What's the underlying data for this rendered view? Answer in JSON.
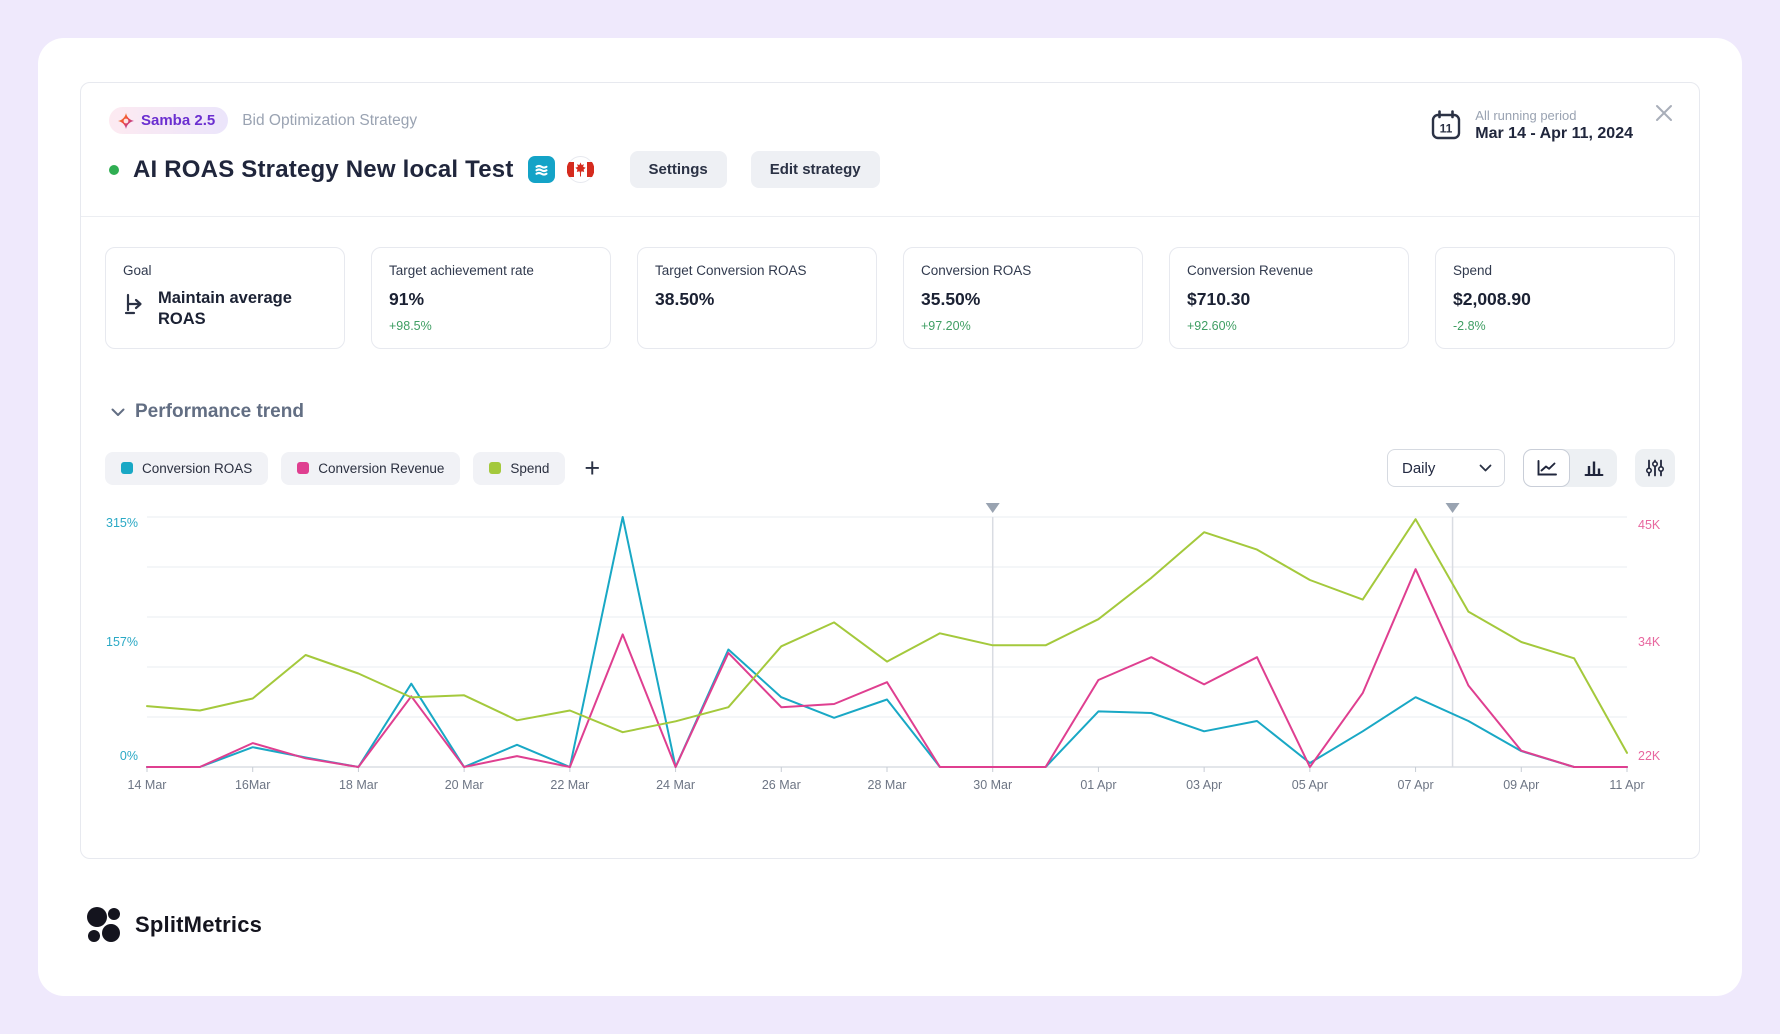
{
  "header": {
    "badge": "Samba 2.5",
    "subtitle": "Bid Optimization Strategy",
    "title": "AI ROAS Strategy New local Test",
    "settings_label": "Settings",
    "edit_label": "Edit strategy",
    "period_label": "All running period",
    "period_value": "Mar 14 - Apr 11, 2024",
    "calendar_day": "11"
  },
  "metrics": [
    {
      "label": "Goal",
      "value": "Maintain average ROAS"
    },
    {
      "label": "Target achievement rate",
      "value": "91%",
      "delta": "+98.5%"
    },
    {
      "label": "Target Conversion ROAS",
      "value": "38.50%",
      "delta": ""
    },
    {
      "label": "Conversion ROAS",
      "value": "35.50%",
      "delta": "+97.20%"
    },
    {
      "label": "Conversion Revenue",
      "value": "$710.30",
      "delta": "+92.60%"
    },
    {
      "label": "Spend",
      "value": "$2,008.90",
      "delta": "-2.8%"
    }
  ],
  "trend": {
    "title": "Performance trend",
    "interval": "Daily",
    "add_label": "+",
    "legend": [
      {
        "label": "Conversion ROAS",
        "color": "#19a8c5"
      },
      {
        "label": "Conversion Revenue",
        "color": "#df3f90"
      },
      {
        "label": "Spend",
        "color": "#a4c93c"
      }
    ]
  },
  "chart_data": {
    "type": "line",
    "x": [
      "14 Mar",
      "15 Mar",
      "16 Mar",
      "17 Mar",
      "18 Mar",
      "19 Mar",
      "20 Mar",
      "21 Mar",
      "22 Mar",
      "23 Mar",
      "24 Mar",
      "25 Mar",
      "26 Mar",
      "27 Mar",
      "28 Mar",
      "29 Mar",
      "30 Mar",
      "31 Mar",
      "01 Apr",
      "02 Apr",
      "03 Apr",
      "04 Apr",
      "05 Apr",
      "06 Apr",
      "07 Apr",
      "08 Apr",
      "09 Apr",
      "10 Apr",
      "11 Apr"
    ],
    "tick_labels": [
      "14 Mar",
      "16Mar",
      "18 Mar",
      "20 Mar",
      "22 Mar",
      "24 Mar",
      "26 Mar",
      "28 Mar",
      "30 Mar",
      "01 Apr",
      "03 Apr",
      "05 Apr",
      "07 Apr",
      "09 Apr",
      "11 Apr"
    ],
    "tick_days": [
      0,
      2,
      4,
      6,
      8,
      10,
      12,
      14,
      16,
      18,
      20,
      22,
      24,
      26,
      28
    ],
    "series": [
      {
        "name": "Conversion ROAS",
        "axis": "left",
        "unit": "%",
        "color": "#19a8c5",
        "values": [
          0,
          0,
          25,
          12,
          0,
          105,
          0,
          28,
          0,
          315,
          0,
          148,
          88,
          62,
          85,
          0,
          0,
          0,
          70,
          68,
          45,
          58,
          5,
          45,
          88,
          58,
          20,
          0,
          0
        ]
      },
      {
        "name": "Conversion Revenue",
        "axis": "right",
        "unit": "K",
        "color": "#df3f90",
        "values": [
          22,
          22,
          24.2,
          22.8,
          22,
          28.5,
          22,
          23,
          22,
          34.2,
          22,
          32.5,
          27.5,
          27.8,
          29.8,
          22,
          22,
          22,
          30,
          32.1,
          29.6,
          32.1,
          22,
          28.8,
          40.2,
          29.5,
          23.5,
          22,
          22
        ]
      },
      {
        "name": "Spend",
        "axis": "right",
        "unit": "K",
        "color": "#a4c93c",
        "values": [
          27.6,
          27.2,
          28.3,
          32.3,
          30.6,
          28.4,
          28.6,
          26.3,
          27.2,
          25.2,
          26.2,
          27.5,
          33.1,
          35.3,
          31.7,
          34.3,
          33.2,
          33.2,
          35.6,
          39.4,
          43.6,
          42,
          39.2,
          37.4,
          44.8,
          36.3,
          33.5,
          32,
          23.3
        ]
      }
    ],
    "left_axis": {
      "ticks": [
        {
          "label": "315%",
          "v": 315
        },
        {
          "label": "157%",
          "v": 157.5
        },
        {
          "label": "0%",
          "v": 0
        }
      ],
      "range": [
        0,
        315
      ],
      "color": "#2aa9c5"
    },
    "right_axis": {
      "ticks": [
        {
          "label": "45K",
          "v": 45
        },
        {
          "label": "34K",
          "v": 33.5
        },
        {
          "label": "22K",
          "v": 22
        }
      ],
      "range": [
        22,
        45
      ],
      "color": "#e8679f"
    },
    "markers_days": [
      16,
      24.7
    ],
    "grid": true,
    "legend_position": "top-left"
  },
  "footer": {
    "brand": "SplitMetrics"
  }
}
